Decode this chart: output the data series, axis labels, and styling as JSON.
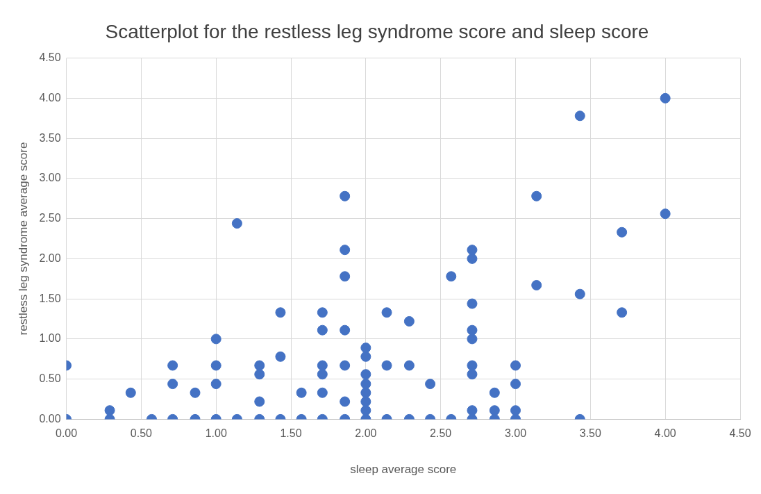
{
  "chart_data": {
    "type": "scatter",
    "title": "Scatterplot for the restless leg syndrome score and sleep score",
    "xlabel": "sleep average score",
    "ylabel": "restless leg syndrome average score",
    "xlim": [
      0,
      4.5
    ],
    "xticks": [
      {
        "value": 0,
        "label": "0.00"
      },
      {
        "value": 0.5,
        "label": "0.50"
      },
      {
        "value": 1,
        "label": "1.00"
      },
      {
        "value": 1.5,
        "label": "1.50"
      },
      {
        "value": 2,
        "label": "2.00"
      },
      {
        "value": 2.5,
        "label": "2.50"
      },
      {
        "value": 3,
        "label": "3.00"
      },
      {
        "value": 3.5,
        "label": "3.50"
      },
      {
        "value": 4,
        "label": "4.00"
      },
      {
        "value": 4.5,
        "label": "4.50"
      }
    ],
    "ylim": [
      0,
      4.5
    ],
    "yticks": [
      {
        "value": 0,
        "label": "0.00"
      },
      {
        "value": 0.5,
        "label": "0.50"
      },
      {
        "value": 1,
        "label": "1.00"
      },
      {
        "value": 1.5,
        "label": "1.50"
      },
      {
        "value": 2,
        "label": "2.00"
      },
      {
        "value": 2.5,
        "label": "2.50"
      },
      {
        "value": 3,
        "label": "3.00"
      },
      {
        "value": 3.5,
        "label": "3.50"
      },
      {
        "value": 4,
        "label": "4.00"
      },
      {
        "value": 4.5,
        "label": "4.50"
      }
    ],
    "grid": true,
    "legend": false,
    "marker": "circle",
    "series": [
      {
        "color": "#4472c4",
        "x": [
          0,
          0,
          0.29,
          0.29,
          0.43,
          0.57,
          0.71,
          0.71,
          0.71,
          0.86,
          0.86,
          1,
          1,
          1,
          1,
          1.14,
          1.14,
          1.29,
          1.29,
          1.29,
          1.29,
          1.43,
          1.43,
          1.43,
          1.57,
          1.57,
          1.71,
          1.71,
          1.71,
          1.71,
          1.71,
          1.71,
          1.86,
          1.86,
          1.86,
          1.86,
          1.86,
          1.86,
          1.86,
          2,
          2,
          2,
          2,
          2,
          2,
          2,
          2,
          2.14,
          2.14,
          2.14,
          2.29,
          2.29,
          2.29,
          2.43,
          2.43,
          2.57,
          2.57,
          2.71,
          2.71,
          2.71,
          2.71,
          2.71,
          2.71,
          2.71,
          2.71,
          2.71,
          2.86,
          2.86,
          2.86,
          3,
          3,
          3,
          3,
          3.14,
          3.14,
          3.43,
          3.43,
          3.43,
          3.71,
          3.71,
          4,
          4
        ],
        "values": [
          0,
          0.67,
          0,
          0.11,
          0.33,
          0,
          0,
          0.44,
          0.67,
          0,
          0.33,
          0,
          0.44,
          0.67,
          1,
          0,
          2.44,
          0,
          0.22,
          0.56,
          0.67,
          0,
          0.78,
          1.33,
          0,
          0.33,
          0,
          0.33,
          0.56,
          0.67,
          1.11,
          1.33,
          0,
          0.22,
          0.67,
          1.11,
          1.78,
          2.11,
          2.78,
          0,
          0.11,
          0.22,
          0.33,
          0.44,
          0.56,
          0.78,
          0.89,
          0,
          0.67,
          1.33,
          0,
          0.67,
          1.22,
          0,
          0.44,
          0,
          1.78,
          0,
          0.11,
          0.56,
          0.67,
          1,
          1.11,
          1.44,
          2,
          2.11,
          0,
          0.11,
          0.33,
          0,
          0.11,
          0.44,
          0.67,
          1.67,
          2.78,
          0,
          1.56,
          3.78,
          1.33,
          2.33,
          2.56,
          4
        ]
      }
    ]
  }
}
